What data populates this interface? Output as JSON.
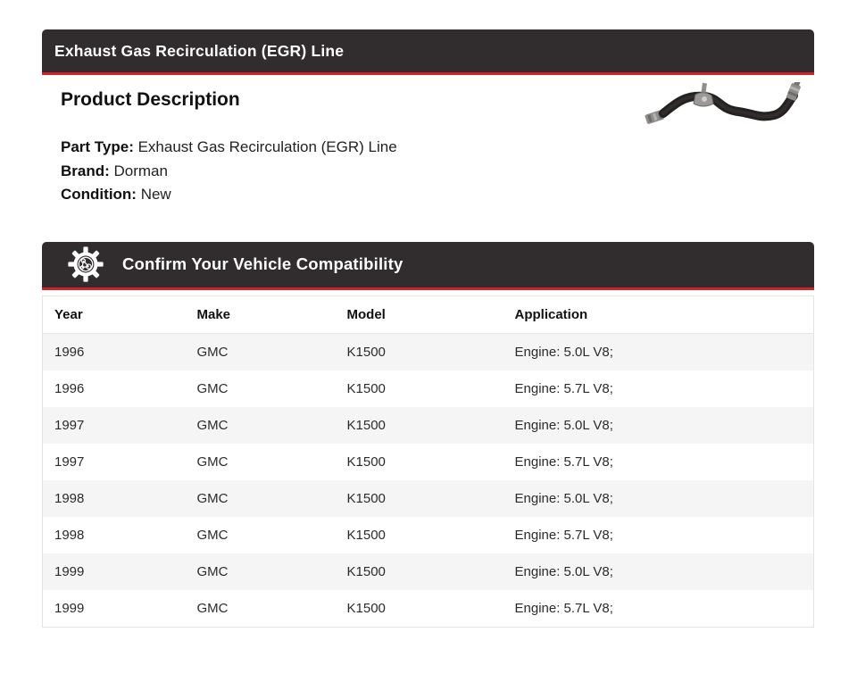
{
  "colors": {
    "header_bg": "#312d2e",
    "accent_red": "#d42028",
    "row_alt": "#f5f5f5",
    "table_border": "#e4e4e4"
  },
  "title_bar": {
    "title": "Exhaust Gas Recirculation (EGR) Line"
  },
  "product": {
    "heading": "Product Description",
    "photo": "egr-line-hose-photo",
    "details": [
      {
        "label": "Part Type:",
        "value": "Exhaust Gas Recirculation (EGR) Line"
      },
      {
        "label": "Brand:",
        "value": "Dorman"
      },
      {
        "label": "Condition:",
        "value": "New"
      }
    ]
  },
  "compatibility": {
    "heading": "Confirm Your Vehicle Compatibility",
    "icon": "gear-icon",
    "table": {
      "columns": [
        "Year",
        "Make",
        "Model",
        "Application"
      ],
      "rows": [
        [
          "1996",
          "GMC",
          "K1500",
          "Engine: 5.0L V8;"
        ],
        [
          "1996",
          "GMC",
          "K1500",
          "Engine: 5.7L V8;"
        ],
        [
          "1997",
          "GMC",
          "K1500",
          "Engine: 5.0L V8;"
        ],
        [
          "1997",
          "GMC",
          "K1500",
          "Engine: 5.7L V8;"
        ],
        [
          "1998",
          "GMC",
          "K1500",
          "Engine: 5.0L V8;"
        ],
        [
          "1998",
          "GMC",
          "K1500",
          "Engine: 5.7L V8;"
        ],
        [
          "1999",
          "GMC",
          "K1500",
          "Engine: 5.0L V8;"
        ],
        [
          "1999",
          "GMC",
          "K1500",
          "Engine: 5.7L V8;"
        ]
      ]
    }
  }
}
